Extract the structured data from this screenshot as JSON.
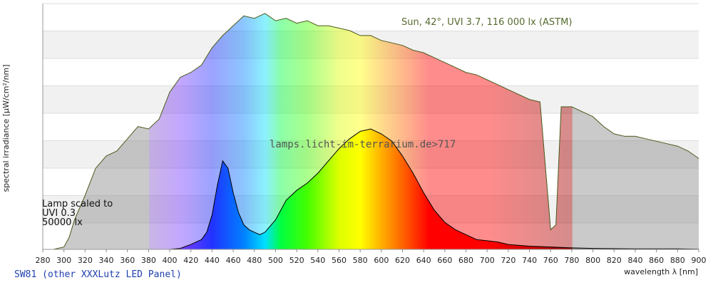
{
  "chart_data": {
    "type": "area",
    "xlabel": "wavelength λ [nm]",
    "ylabel": "spectral irradiance [µW/cm²/nm]",
    "xlim": [
      280,
      900
    ],
    "x_ticks": [
      "280",
      "300",
      "320",
      "340",
      "360",
      "380",
      "400",
      "420",
      "440",
      "460",
      "480",
      "500",
      "520",
      "540",
      "560",
      "580",
      "600",
      "620",
      "640",
      "660",
      "680",
      "700",
      "720",
      "740",
      "760",
      "780",
      "800",
      "820",
      "840",
      "860",
      "880",
      "900"
    ],
    "grid": "horizontal bands, no y tick labels",
    "sun": {
      "label": "Sun, 42°, UVI 3.7, 116 000 lx (ASTM)",
      "x": [
        290,
        300,
        305,
        310,
        320,
        330,
        340,
        350,
        360,
        370,
        380,
        390,
        400,
        410,
        420,
        430,
        440,
        450,
        460,
        470,
        480,
        490,
        500,
        510,
        520,
        530,
        540,
        550,
        560,
        570,
        580,
        590,
        600,
        610,
        620,
        630,
        640,
        650,
        660,
        670,
        680,
        690,
        700,
        710,
        720,
        730,
        740,
        750,
        760,
        765,
        770,
        780,
        790,
        800,
        810,
        820,
        830,
        840,
        850,
        860,
        870,
        880,
        890,
        900
      ],
      "y_relative": [
        0,
        0.01,
        0.05,
        0.12,
        0.22,
        0.33,
        0.38,
        0.4,
        0.45,
        0.5,
        0.49,
        0.53,
        0.64,
        0.7,
        0.72,
        0.75,
        0.82,
        0.87,
        0.91,
        0.95,
        0.94,
        0.96,
        0.93,
        0.94,
        0.92,
        0.93,
        0.91,
        0.91,
        0.9,
        0.89,
        0.87,
        0.87,
        0.85,
        0.84,
        0.83,
        0.81,
        0.8,
        0.78,
        0.76,
        0.74,
        0.72,
        0.71,
        0.69,
        0.67,
        0.65,
        0.63,
        0.61,
        0.6,
        0.08,
        0.1,
        0.58,
        0.58,
        0.56,
        0.54,
        0.5,
        0.47,
        0.46,
        0.46,
        0.45,
        0.44,
        0.43,
        0.42,
        0.4,
        0.37
      ]
    },
    "lamp": {
      "label": "SW81 (other XXXLutz LED Panel)",
      "note_lines": [
        "Lamp scaled to",
        "UVI 0.3",
        "50000 lx"
      ],
      "x": [
        400,
        410,
        420,
        430,
        435,
        440,
        445,
        450,
        455,
        460,
        465,
        470,
        475,
        480,
        485,
        490,
        500,
        510,
        520,
        530,
        540,
        550,
        560,
        570,
        580,
        590,
        600,
        610,
        620,
        630,
        640,
        650,
        660,
        670,
        680,
        690,
        700,
        710,
        720,
        740,
        760,
        780,
        800,
        820,
        840,
        860,
        880,
        900
      ],
      "y_relative": [
        0,
        0.004,
        0.02,
        0.04,
        0.07,
        0.14,
        0.26,
        0.36,
        0.33,
        0.23,
        0.15,
        0.1,
        0.08,
        0.07,
        0.06,
        0.07,
        0.12,
        0.2,
        0.24,
        0.27,
        0.31,
        0.36,
        0.41,
        0.45,
        0.48,
        0.49,
        0.47,
        0.44,
        0.38,
        0.31,
        0.23,
        0.16,
        0.11,
        0.08,
        0.06,
        0.04,
        0.035,
        0.03,
        0.02,
        0.013,
        0.01,
        0.006,
        0.004,
        0.003,
        0.002,
        0.002,
        0.002,
        0.001
      ]
    },
    "watermark": "lamps.licht-im-terrarium.de>717"
  }
}
